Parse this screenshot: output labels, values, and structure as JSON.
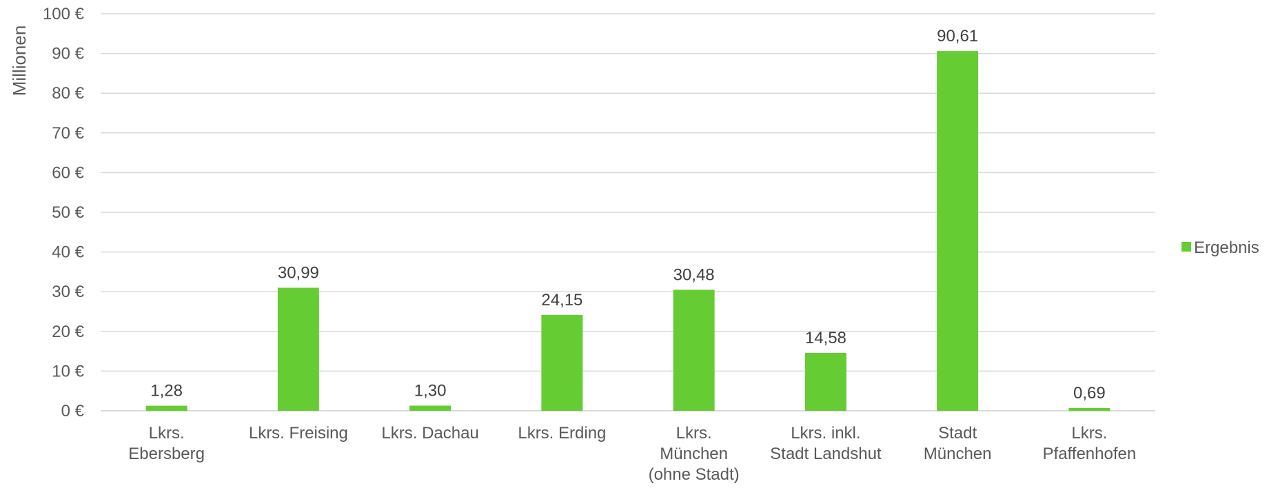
{
  "chart_data": {
    "type": "bar",
    "categories": [
      [
        "Lkrs.",
        "Ebersberg"
      ],
      [
        "Lkrs. Freising"
      ],
      [
        "Lkrs.  Dachau"
      ],
      [
        "Lkrs. Erding"
      ],
      [
        "Lkrs.",
        "München",
        "(ohne Stadt)"
      ],
      [
        "Lkrs. inkl.",
        "Stadt Landshut"
      ],
      [
        "Stadt",
        "München"
      ],
      [
        "Lkrs.",
        "Pfaffenhofen"
      ]
    ],
    "series": [
      {
        "name": "Ergebnis",
        "values": [
          1.28,
          30.99,
          1.3,
          24.15,
          30.48,
          14.58,
          90.61,
          0.69
        ],
        "labels": [
          "1,28",
          "30,99",
          "1,30",
          "24,15",
          "30,48",
          "14,58",
          "90,61",
          "0,69"
        ]
      }
    ],
    "ylabel": "Millionen",
    "ylim": [
      0,
      100
    ],
    "yticks": [
      0,
      10,
      20,
      30,
      40,
      50,
      60,
      70,
      80,
      90,
      100
    ],
    "ytick_labels": [
      "0 €",
      "10 €",
      "20 €",
      "30 €",
      "40 €",
      "50 €",
      "60 €",
      "70 €",
      "80 €",
      "90 €",
      "100 €"
    ],
    "grid": true,
    "legend_position": "right",
    "bar_color": "#66cc33"
  }
}
